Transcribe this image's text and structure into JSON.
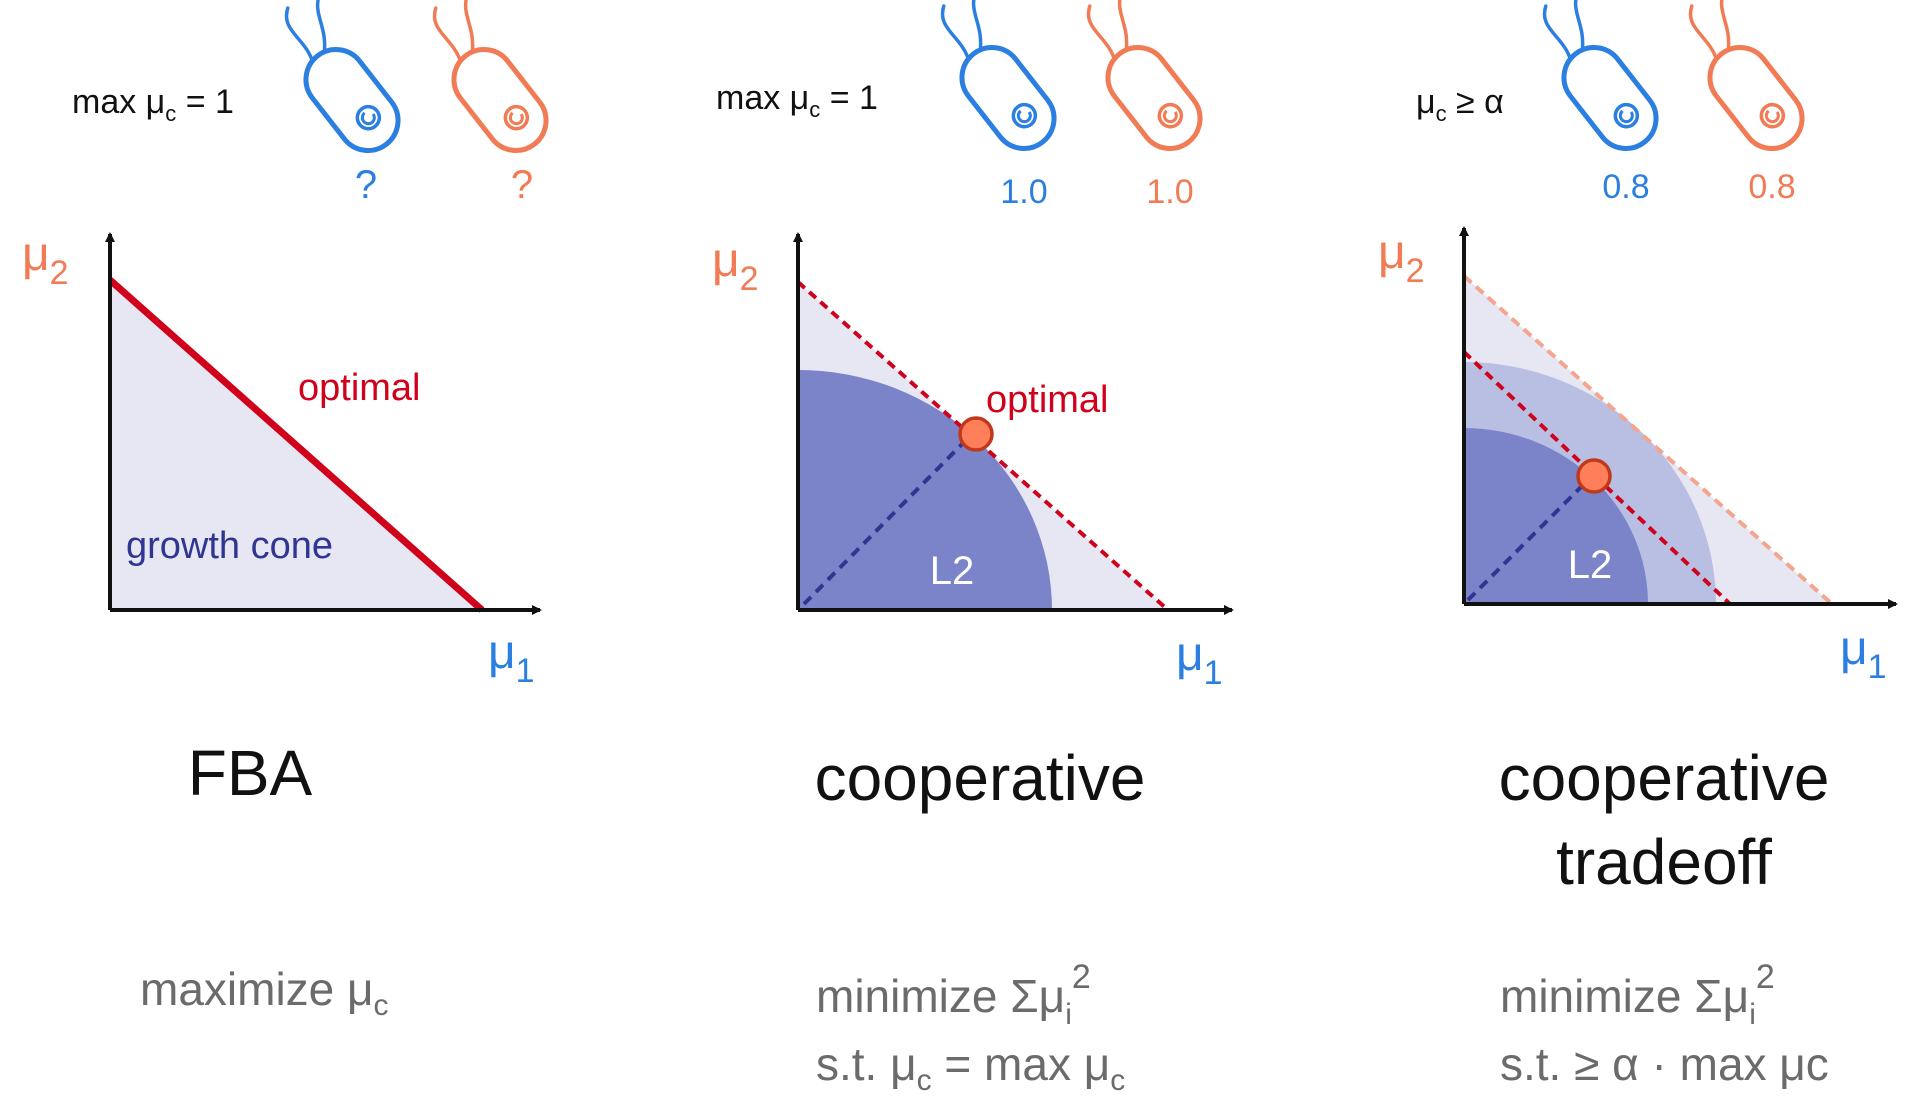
{
  "colors": {
    "blue": "#2b7fe0",
    "orange": "#f07b55",
    "red": "#d0021b",
    "cone_fill": "#e6e7f3",
    "l2_fill": "#7b84c9",
    "tradeoff_ring": "#b9bee3",
    "navy": "#2f3590",
    "marker": "#ff7f5a"
  },
  "panels": [
    {
      "constraint": "max μc = 1",
      "cell_values": [
        "?",
        "?"
      ],
      "axis_y": "μ2",
      "axis_x": "μ1",
      "optimal_label": "optimal",
      "cone_label": "growth cone",
      "title": [
        "FBA"
      ],
      "formula": [
        "maximize μc"
      ]
    },
    {
      "constraint": "max μc = 1",
      "cell_values": [
        "1.0",
        "1.0"
      ],
      "axis_y": "μ2",
      "axis_x": "μ1",
      "optimal_label": "optimal",
      "region_label": "L2",
      "title": [
        "cooperative"
      ],
      "formula": [
        "minimize Σμi2",
        "s.t. μc = max μc"
      ]
    },
    {
      "constraint": "μc ≥ α",
      "cell_values": [
        "0.8",
        "0.8"
      ],
      "axis_y": "μ2",
      "axis_x": "μ1",
      "region_label": "L2",
      "title": [
        "cooperative",
        "tradeoff"
      ],
      "formula": [
        "minimize Σμi2",
        "s.t. ≥ α · max μc"
      ]
    }
  ]
}
